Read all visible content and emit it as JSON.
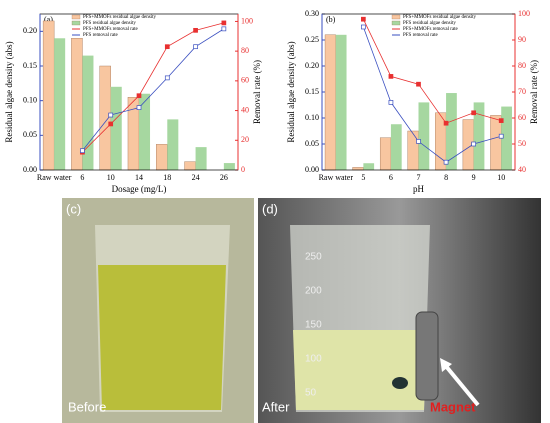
{
  "chart_data": [
    {
      "type": "bar",
      "label": "(a)",
      "x_label": "Dosage (mg/L)",
      "y_label": "Residual algae density (abs)",
      "y2_label": "Removal rate (%)",
      "categories": [
        "Raw water",
        "6",
        "10",
        "14",
        "18",
        "24",
        "26"
      ],
      "ylim": [
        0,
        0.225
      ],
      "yticks": [
        {
          "value": 0,
          "label": "0.00"
        },
        0.05,
        {
          "value": 0.1,
          "label": "0.10"
        },
        0.15,
        {
          "value": 0.2,
          "label": "0.20"
        }
      ],
      "y2lim": [
        0,
        105
      ],
      "y2ticks": [
        0,
        20,
        40,
        60,
        80,
        100
      ],
      "series": [
        {
          "name": "PFS+MMOFs residual algae density",
          "color": "#f8c6a0",
          "values": [
            0.215,
            0.19,
            0.15,
            0.105,
            0.037,
            0.012,
            0
          ]
        },
        {
          "name": "PFS residual algae density",
          "color": "#a6d7a0",
          "values": [
            0.19,
            0.165,
            0.12,
            0.11,
            0.073,
            0.033,
            0.01
          ]
        },
        {
          "name": "PFS+MMOFs removal rate",
          "color": "#e83030",
          "axis": "y2",
          "values": [
            null,
            12,
            31,
            50,
            83,
            94,
            99
          ]
        },
        {
          "name": "PFS removal rate",
          "color": "#3a4fc0",
          "axis": "y2",
          "values": [
            null,
            13,
            37,
            42,
            62,
            83,
            95
          ]
        }
      ]
    },
    {
      "type": "bar",
      "label": "(b)",
      "x_label": "pH",
      "y_label": "Residual algae density (abs)",
      "y2_label": "Removal rate (%)",
      "categories": [
        "Raw water",
        "5",
        "6",
        "7",
        "8",
        "9",
        "10"
      ],
      "ylim": [
        0,
        0.3
      ],
      "yticks": [
        {
          "value": 0,
          "label": "0.00"
        },
        0.05,
        {
          "value": 0.1,
          "label": "0.10"
        },
        0.15,
        {
          "value": 0.2,
          "label": "0.20"
        },
        0.25,
        {
          "value": 0.3,
          "label": "0.30"
        }
      ],
      "y2lim": [
        40,
        100
      ],
      "y2ticks": [
        40,
        50,
        60,
        70,
        80,
        90,
        100
      ],
      "series": [
        {
          "name": "PFS+MMOFs residual algae density",
          "color": "#f8c6a0",
          "values": [
            0.26,
            0.005,
            0.062,
            0.075,
            0.11,
            0.097,
            0.105
          ]
        },
        {
          "name": "PFS residual algae density",
          "color": "#a6d7a0",
          "values": [
            0.26,
            0.013,
            0.088,
            0.13,
            0.148,
            0.13,
            0.122
          ]
        },
        {
          "name": "PFS+MMOFs removal rate",
          "color": "#e83030",
          "axis": "y2",
          "values": [
            null,
            98,
            76,
            73,
            58,
            62,
            59
          ]
        },
        {
          "name": "PFS removal rate",
          "color": "#3a4fc0",
          "axis": "y2",
          "values": [
            null,
            95,
            66,
            51,
            43,
            50,
            53
          ]
        }
      ]
    }
  ],
  "photos": {
    "c": {
      "label": "(c)",
      "caption": "Before"
    },
    "d": {
      "label": "(d)",
      "caption": "After",
      "scale": [
        "250",
        "200",
        "150",
        "100",
        "50"
      ],
      "magnet": "Magnet"
    }
  }
}
